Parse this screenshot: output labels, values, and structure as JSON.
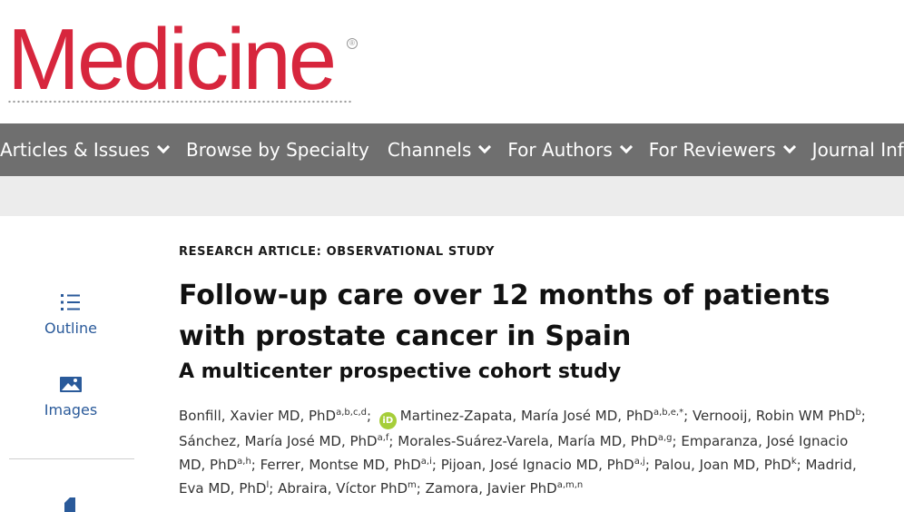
{
  "brand": {
    "logo_text": "Medicine",
    "registered": "®",
    "accent_color": "#d7263d"
  },
  "nav": {
    "items": [
      {
        "label": "Articles & Issues",
        "has_dropdown": true
      },
      {
        "label": "Browse by Specialty",
        "has_dropdown": false
      },
      {
        "label": "Channels",
        "has_dropdown": true
      },
      {
        "label": "For Authors",
        "has_dropdown": true
      },
      {
        "label": "For Reviewers",
        "has_dropdown": true
      },
      {
        "label": "Journal Info",
        "has_dropdown": false
      }
    ],
    "bg_color": "#6f6f6f"
  },
  "sidebar": {
    "outline_label": "Outline",
    "images_label": "Images",
    "icons": [
      "list-icon",
      "image-icon",
      "document-icon"
    ]
  },
  "article": {
    "kicker": "RESEARCH ARTICLE: OBSERVATIONAL STUDY",
    "title": "Follow-up care over 12 months of patients with prostate cancer in Spain",
    "subtitle": "A multicenter prospective cohort study",
    "orcid_label": "iD",
    "authors": [
      {
        "name": "Bonfill, Xavier MD, PhD",
        "sup": "a,b,c,d",
        "sep": ";"
      },
      {
        "name": "Martinez-Zapata, María José MD, PhD",
        "sup": "a,b,e,*",
        "sep": ";",
        "orcid": true
      },
      {
        "name": "Vernooij, Robin WM PhD",
        "sup": "b",
        "sep": ";"
      },
      {
        "name": "Sánchez, María José MD, PhD",
        "sup": "a,f",
        "sep": ";"
      },
      {
        "name": "Morales-Suárez-Varela, María MD, PhD",
        "sup": "a,g",
        "sep": ";"
      },
      {
        "name": "Emparanza, José Ignacio MD, PhD",
        "sup": "a,h",
        "sep": ";"
      },
      {
        "name": "Ferrer, Montse MD, PhD",
        "sup": "a,i",
        "sep": ";"
      },
      {
        "name": "Pijoan, José Ignacio MD, PhD",
        "sup": "a,j",
        "sep": ";"
      },
      {
        "name": "Palou, Joan MD, PhD",
        "sup": "k",
        "sep": ";"
      },
      {
        "name": "Madrid, Eva MD, PhD",
        "sup": "l",
        "sep": ";"
      },
      {
        "name": "Abraira, Víctor PhD",
        "sup": "m",
        "sep": ";"
      },
      {
        "name": "Zamora, Javier PhD",
        "sup": "a,m,n",
        "sep": ""
      }
    ]
  }
}
